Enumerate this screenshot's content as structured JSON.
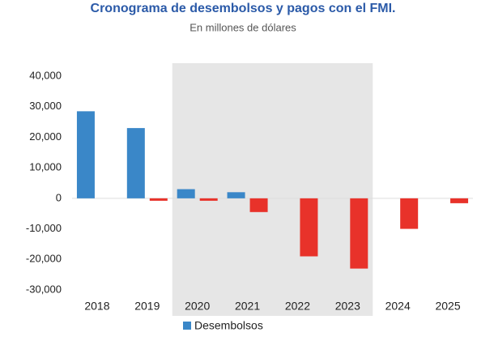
{
  "chart_data": {
    "type": "bar",
    "title": "Cronograma de desembolsos y pagos con el FMI.",
    "subtitle": "En millones de dólares",
    "categories": [
      "2018",
      "2019",
      "2020",
      "2021",
      "2022",
      "2023",
      "2024",
      "2025"
    ],
    "series": [
      {
        "name": "Desembolsos",
        "color": "#3a87c8",
        "values": [
          28500,
          23000,
          3000,
          2000,
          null,
          null,
          null,
          null
        ]
      },
      {
        "color": "#e8322a",
        "values": [
          null,
          -800,
          -800,
          -4500,
          -19000,
          -23000,
          -10000,
          -1600
        ]
      }
    ],
    "ylim": [
      -30000,
      40000
    ],
    "yticks": [
      {
        "value": 40000,
        "label": "40,000"
      },
      {
        "value": 30000,
        "label": "30,000"
      },
      {
        "value": 20000,
        "label": "20,000"
      },
      {
        "value": 10000,
        "label": "10,000"
      },
      0,
      {
        "value": -10000,
        "label": "-10,000"
      },
      {
        "value": -20000,
        "label": "-20,000"
      },
      {
        "value": -30000,
        "label": "-30,000"
      }
    ],
    "grid": false,
    "legend": "bottom"
  }
}
